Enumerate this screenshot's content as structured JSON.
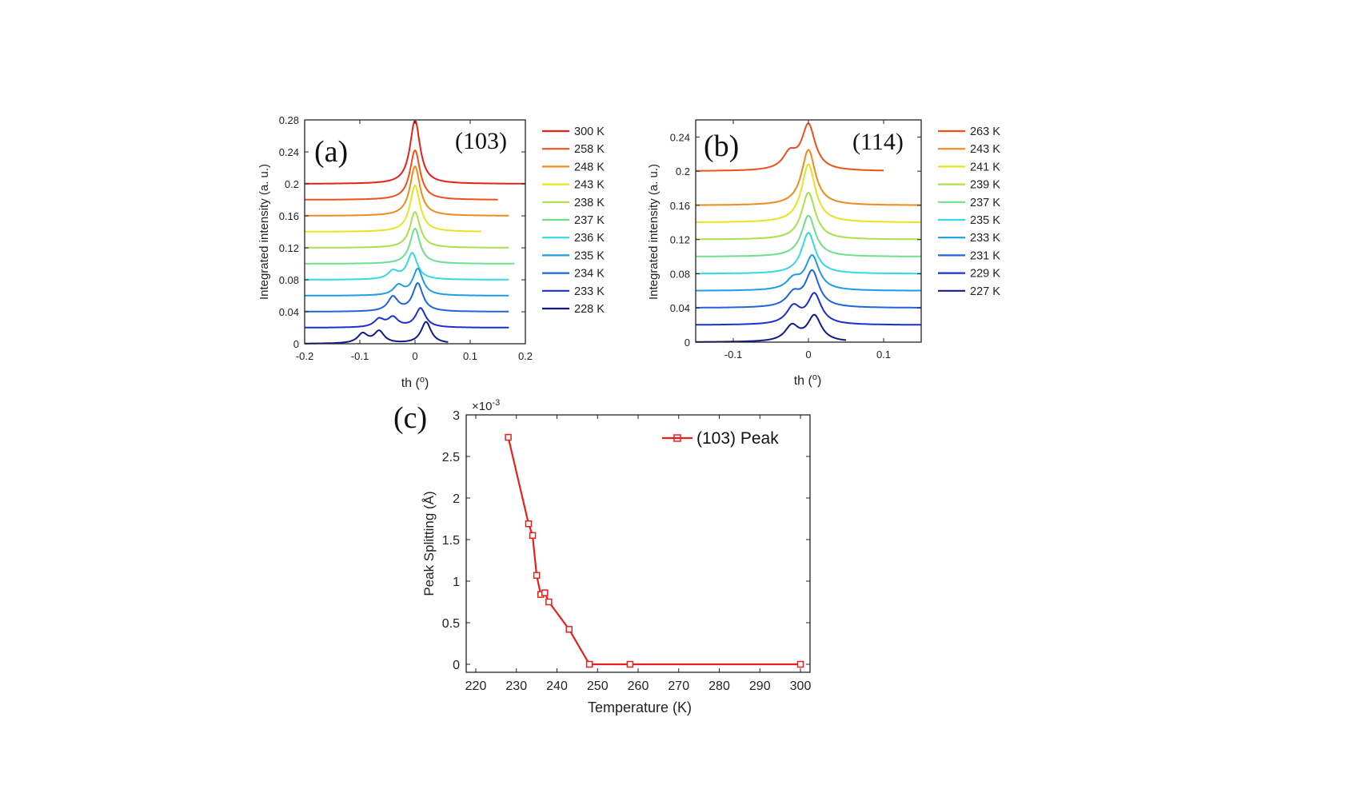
{
  "chart_data": [
    {
      "id": "a",
      "type": "line",
      "panel_label": "(a)",
      "reflection": "(103)",
      "xlabel": "th (o)",
      "ylabel": "Integrated intensity (a. u.)",
      "xlim": [
        -0.2,
        0.2
      ],
      "ylim": [
        0,
        0.28
      ],
      "xticks": [
        "-0.2",
        "-0.1",
        "0",
        "0.1",
        "0.2"
      ],
      "yticks": [
        "0",
        "0.04",
        "0.08",
        "0.12",
        "0.16",
        "0.2",
        "0.24",
        "0.28"
      ],
      "legend_position": "outside-right",
      "series": [
        {
          "name": "300 K",
          "color": "#e8201b",
          "offset": 0.2,
          "x_end": 0.2,
          "shape": [
            [
              0.0,
              0.08
            ]
          ]
        },
        {
          "name": "258 K",
          "color": "#f0501b",
          "offset": 0.18,
          "x_end": 0.15,
          "shape": [
            [
              0.0,
              0.062
            ]
          ]
        },
        {
          "name": "248 K",
          "color": "#f08a1d",
          "offset": 0.16,
          "x_end": 0.17,
          "shape": [
            [
              0.0,
              0.062
            ]
          ]
        },
        {
          "name": "243 K",
          "color": "#e8e321",
          "offset": 0.14,
          "x_end": 0.12,
          "shape": [
            [
              0.0,
              0.058
            ]
          ]
        },
        {
          "name": "238 K",
          "color": "#a8e04a",
          "offset": 0.12,
          "x_end": 0.17,
          "shape": [
            [
              0.0,
              0.045
            ]
          ]
        },
        {
          "name": "237 K",
          "color": "#6ee08c",
          "offset": 0.1,
          "x_end": 0.18,
          "shape": [
            [
              0.0,
              0.044
            ]
          ]
        },
        {
          "name": "236 K",
          "color": "#36d8e6",
          "offset": 0.08,
          "x_end": 0.17,
          "shape": [
            [
              -0.005,
              0.033
            ],
            [
              -0.04,
              0.01
            ]
          ]
        },
        {
          "name": "235 K",
          "color": "#1f9ce6",
          "offset": 0.06,
          "x_end": 0.17,
          "shape": [
            [
              0.005,
              0.033
            ],
            [
              -0.03,
              0.012
            ]
          ]
        },
        {
          "name": "234 K",
          "color": "#1e64e0",
          "offset": 0.04,
          "x_end": 0.17,
          "shape": [
            [
              0.005,
              0.035
            ],
            [
              -0.04,
              0.018
            ]
          ]
        },
        {
          "name": "233 K",
          "color": "#1a2ed4",
          "offset": 0.02,
          "x_end": 0.17,
          "shape": [
            [
              0.01,
              0.024
            ],
            [
              -0.065,
              0.01
            ],
            [
              -0.04,
              0.012
            ]
          ]
        },
        {
          "name": "228 K",
          "color": "#101a8c",
          "offset": 0.0,
          "x_end": 0.06,
          "shape": [
            [
              0.02,
              0.027
            ],
            [
              -0.065,
              0.015
            ],
            [
              -0.095,
              0.012
            ]
          ]
        }
      ]
    },
    {
      "id": "b",
      "type": "line",
      "panel_label": "(b)",
      "reflection": "(114)",
      "xlabel": "th (o)",
      "ylabel": "Integrated intensity (a. u.)",
      "xlim": [
        -0.15,
        0.15
      ],
      "ylim": [
        0,
        0.26
      ],
      "xticks": [
        "-0.1",
        "0",
        "0.1"
      ],
      "yticks": [
        "0",
        "0.04",
        "0.08",
        "0.12",
        "0.16",
        "0.2",
        "0.24"
      ],
      "legend_position": "outside-right",
      "series": [
        {
          "name": "263 K",
          "color": "#f0501b",
          "offset": 0.2,
          "x_end": 0.1,
          "shape": [
            [
              0.0,
              0.053
            ],
            [
              -0.025,
              0.018
            ]
          ]
        },
        {
          "name": "243 K",
          "color": "#f08a1d",
          "offset": 0.16,
          "x_end": 0.15,
          "shape": [
            [
              0.0,
              0.065
            ]
          ]
        },
        {
          "name": "241 K",
          "color": "#e8e321",
          "offset": 0.14,
          "x_end": 0.15,
          "shape": [
            [
              0.0,
              0.068
            ]
          ]
        },
        {
          "name": "239 K",
          "color": "#a8e04a",
          "offset": 0.12,
          "x_end": 0.15,
          "shape": [
            [
              0.0,
              0.055
            ]
          ]
        },
        {
          "name": "237 K",
          "color": "#6ee08c",
          "offset": 0.1,
          "x_end": 0.15,
          "shape": [
            [
              0.0,
              0.048
            ]
          ]
        },
        {
          "name": "235 K",
          "color": "#36d8e6",
          "offset": 0.08,
          "x_end": 0.15,
          "shape": [
            [
              0.0,
              0.048
            ]
          ]
        },
        {
          "name": "233 K",
          "color": "#1f9ce6",
          "offset": 0.06,
          "x_end": 0.15,
          "shape": [
            [
              0.005,
              0.04
            ],
            [
              -0.02,
              0.012
            ]
          ]
        },
        {
          "name": "231 K",
          "color": "#1e64e0",
          "offset": 0.04,
          "x_end": 0.15,
          "shape": [
            [
              0.005,
              0.042
            ],
            [
              -0.02,
              0.015
            ]
          ]
        },
        {
          "name": "229 K",
          "color": "#1a2ed4",
          "offset": 0.02,
          "x_end": 0.15,
          "shape": [
            [
              0.008,
              0.035
            ],
            [
              -0.02,
              0.02
            ]
          ]
        },
        {
          "name": "227 K",
          "color": "#101a8c",
          "offset": 0.0,
          "x_end": 0.05,
          "shape": [
            [
              0.008,
              0.03
            ],
            [
              -0.022,
              0.018
            ]
          ]
        }
      ]
    },
    {
      "id": "c",
      "type": "line",
      "panel_label": "(c)",
      "xlabel": "Temperature (K)",
      "ylabel": "Peak Splitting (Å)",
      "y_multiplier": "×10",
      "y_exponent": "-3",
      "xlim": [
        220,
        300
      ],
      "ylim": [
        0,
        3
      ],
      "xticks": [
        "220",
        "230",
        "240",
        "250",
        "260",
        "270",
        "280",
        "290",
        "300"
      ],
      "yticks": [
        "0",
        "0.5",
        "1",
        "1.5",
        "2",
        "2.5",
        "3"
      ],
      "legend_position": "top-right",
      "series": [
        {
          "name": "(103) Peak",
          "color": "#e8201b",
          "marker": "square",
          "x": [
            228,
            233,
            234,
            235,
            236,
            237,
            238,
            243,
            248,
            258,
            300
          ],
          "y": [
            2.73,
            1.69,
            1.55,
            1.07,
            0.84,
            0.86,
            0.75,
            0.42,
            0.0,
            0.0,
            0.0
          ]
        }
      ]
    }
  ]
}
